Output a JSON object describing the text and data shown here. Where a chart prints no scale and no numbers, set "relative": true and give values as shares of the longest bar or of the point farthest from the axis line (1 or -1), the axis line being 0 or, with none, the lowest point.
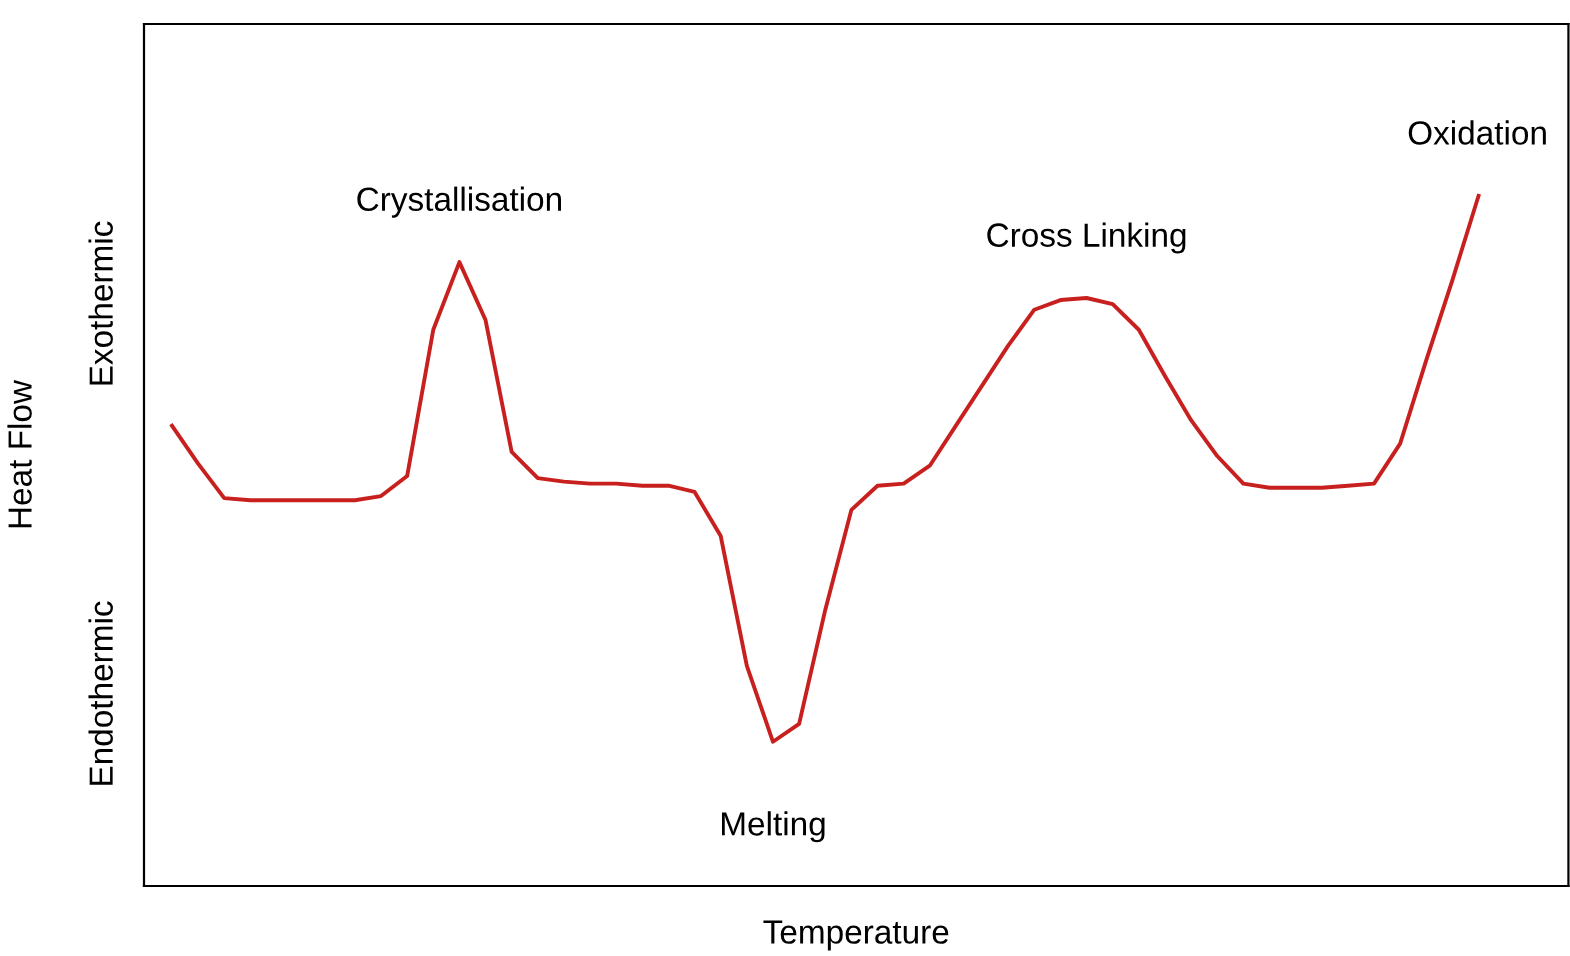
{
  "chart_data": {
    "type": "line",
    "relative": true,
    "xlabel": "Temperature",
    "ylabel": "Heat Flow",
    "categories": [
      null,
      null,
      null,
      null,
      null,
      null,
      null,
      null,
      null,
      null,
      null,
      null,
      null,
      null,
      null,
      null,
      null,
      null,
      null,
      null,
      null,
      null,
      null,
      null,
      null,
      null,
      null,
      null,
      null,
      null,
      null,
      null,
      null,
      null,
      null,
      null,
      null,
      null,
      null,
      null,
      null,
      null,
      null,
      null,
      null,
      null,
      null,
      null,
      null,
      null,
      null
    ],
    "series": [
      {
        "color": "#c8201e",
        "values": [
          0.667,
          0.612,
          0.562,
          0.559,
          0.559,
          0.559,
          0.559,
          0.559,
          0.565,
          0.594,
          0.806,
          0.904,
          0.82,
          0.629,
          0.591,
          0.586,
          0.583,
          0.583,
          0.58,
          0.58,
          0.571,
          0.507,
          0.319,
          0.209,
          0.235,
          0.4,
          0.545,
          0.58,
          0.583,
          0.609,
          0.667,
          0.725,
          0.783,
          0.835,
          0.849,
          0.852,
          0.843,
          0.806,
          0.739,
          0.675,
          0.623,
          0.583,
          0.577,
          0.577,
          0.577,
          0.58,
          0.583,
          0.641,
          0.762,
          0.878,
          1.0
        ]
      }
    ],
    "annotations": [
      {
        "text": "Crystallisation",
        "y": 0.904
      },
      {
        "text": "Melting",
        "y": 0.209
      },
      {
        "text": "Cross Linking",
        "y": 0.852
      },
      {
        "text": "Oxidation",
        "y": 1.0
      },
      "Exothermic",
      "Endothermic"
    ],
    "legend": false,
    "marker": "none",
    "line_style": "solid"
  }
}
